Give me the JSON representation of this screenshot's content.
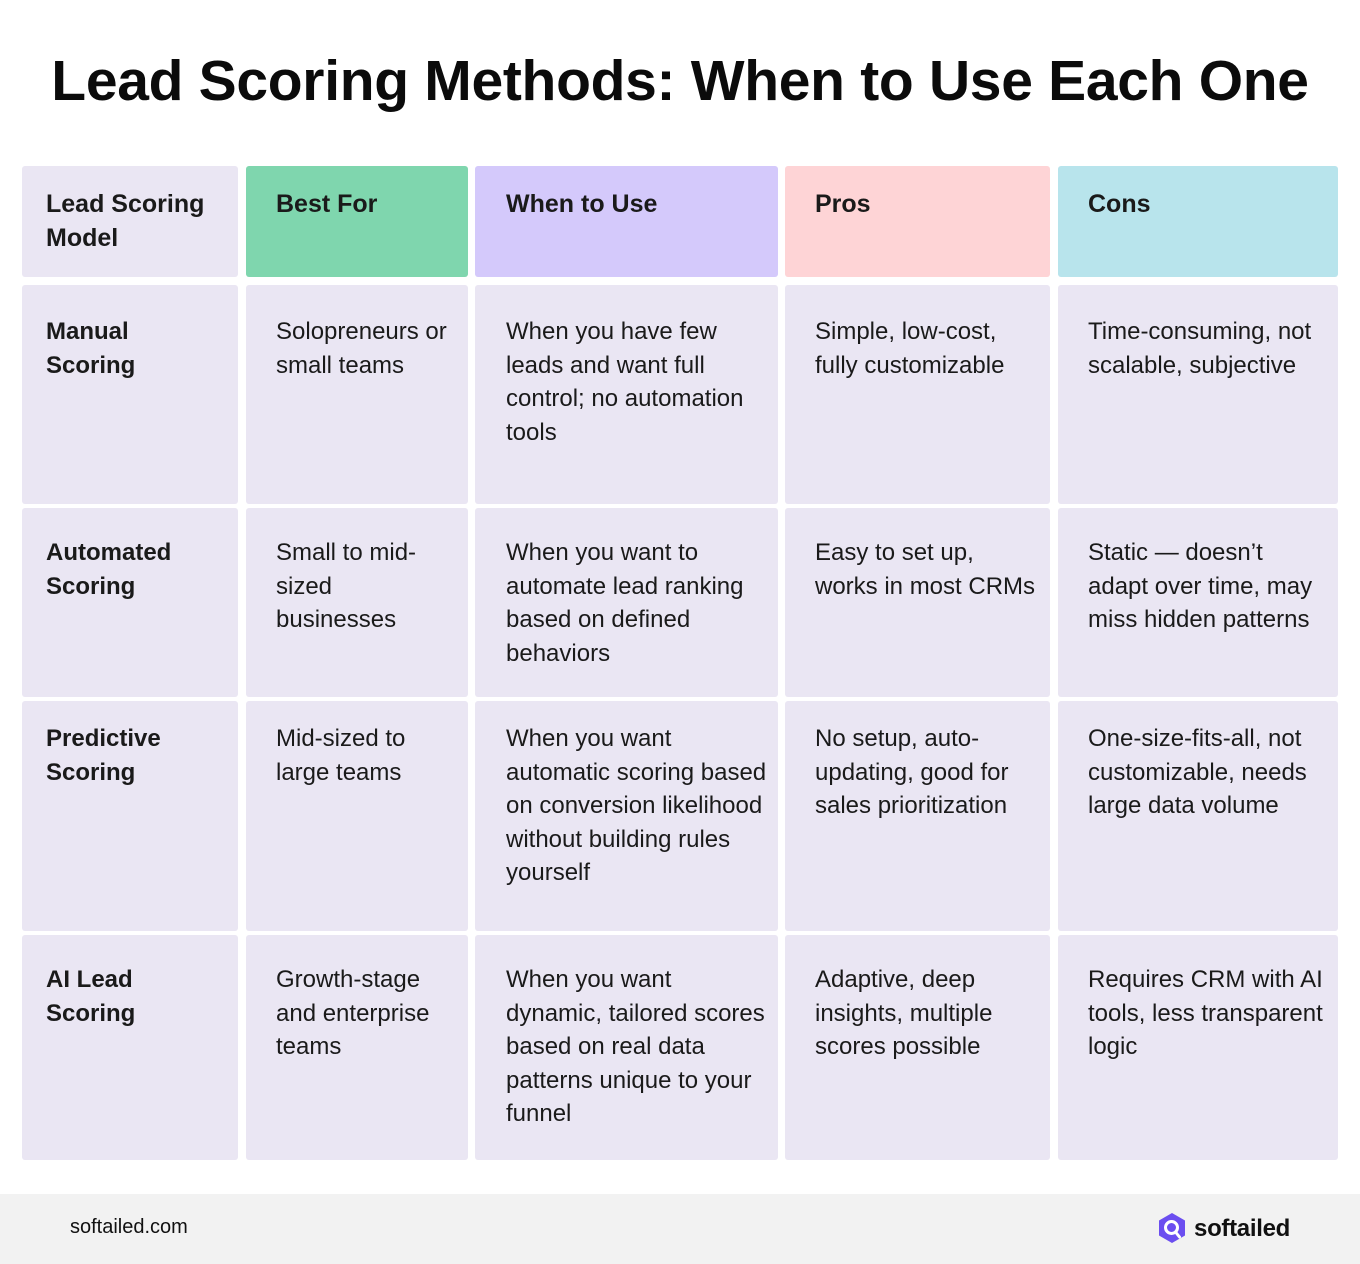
{
  "title": "Lead Scoring Methods: When to Use Each One",
  "table": {
    "headers": [
      "Lead Scoring Model",
      "Best For",
      "When to Use",
      "Pros",
      "Cons"
    ],
    "header_colors": [
      "#eae6f3",
      "#7fd6ae",
      "#d4c9fb",
      "#fed4d6",
      "#b8e4ec"
    ],
    "rows": [
      {
        "model": "Manual Scoring",
        "best_for": "Solopreneurs or small teams",
        "when_to_use": "When you have few leads and want full control; no automation tools",
        "pros": "Simple, low-cost, fully customizable",
        "cons": "Time-consuming, not scalable, subjective"
      },
      {
        "model": "Automated Scoring",
        "best_for": "Small to mid-sized businesses",
        "when_to_use": "When you want to automate lead ranking based on defined behaviors",
        "pros": "Easy to set up, works in most CRMs",
        "cons": "Static — doesn’t adapt over time, may miss hidden patterns"
      },
      {
        "model": "Predictive Scoring",
        "best_for": "Mid-sized to large teams",
        "when_to_use": "When you want automatic scoring based on conversion likelihood without building rules yourself",
        "pros": "No setup, auto-updating, good for sales prioritization",
        "cons": "One-size-fits-all, not customizable, needs large data volume"
      },
      {
        "model": "AI Lead Scoring",
        "best_for": "Growth-stage and enterprise teams",
        "when_to_use": "When you want dynamic, tailored scores based on real data patterns unique to your funnel",
        "pros": "Adaptive, deep insights, multiple scores possible",
        "cons": "Requires CRM with AI tools, less transparent logic"
      }
    ]
  },
  "footer": {
    "url": "softailed.com",
    "brand": "softailed",
    "brand_icon": "softailed-logo-icon",
    "brand_color": "#6b4ef0"
  }
}
